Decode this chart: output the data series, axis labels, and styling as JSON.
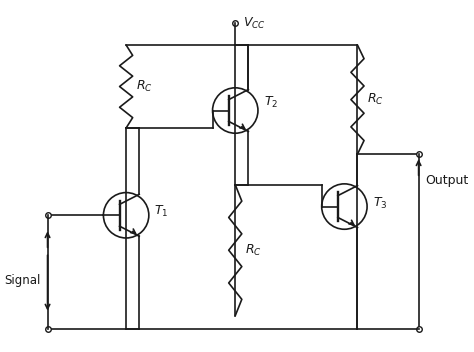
{
  "bg_color": "#ffffff",
  "line_color": "#1a1a1a",
  "fig_width": 4.74,
  "fig_height": 3.52,
  "dpi": 100,
  "xlim": [
    0,
    10
  ],
  "ylim": [
    0,
    8
  ],
  "vcc_label": "$V_{CC}$",
  "signal_label": "Signal",
  "output_label": "Output",
  "rc_label": "$R_C$",
  "t1_label": "$T_1$",
  "t2_label": "$T_2$",
  "t3_label": "$T_3$"
}
